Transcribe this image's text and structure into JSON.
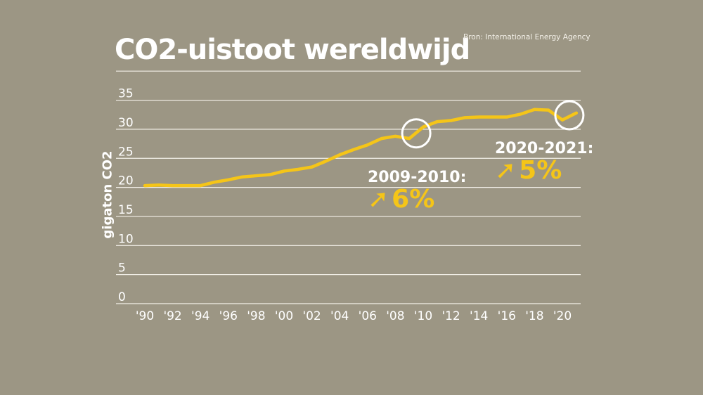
{
  "chart_data": {
    "type": "line",
    "title": "CO2-uistoot wereldwijd",
    "source": "Bron: International Energy Agency",
    "ylabel": "gigaton CO2",
    "xlabel": "",
    "ylim": [
      0,
      40
    ],
    "yticks": [
      0,
      5,
      10,
      15,
      20,
      25,
      30,
      35
    ],
    "ytick_labels": [
      "0",
      "5",
      "10",
      "15",
      "20",
      "25",
      "30",
      "35"
    ],
    "xlim": [
      1990,
      2021
    ],
    "xticks": [
      1990,
      1992,
      1994,
      1996,
      1998,
      2000,
      2002,
      2004,
      2006,
      2008,
      2010,
      2012,
      2014,
      2016,
      2018,
      2020
    ],
    "xtick_labels": [
      "'90",
      "'92",
      "'94",
      "'96",
      "'98",
      "'00",
      "'02",
      "'04",
      "'06",
      "'08",
      "'10",
      "'12",
      "'14",
      "'16",
      "'18",
      "'20"
    ],
    "grid": true,
    "series": [
      {
        "name": "CO2-uitstoot",
        "color": "#f5c518",
        "x": [
          1990,
          1991,
          1992,
          1993,
          1994,
          1995,
          1996,
          1997,
          1998,
          1999,
          2000,
          2001,
          2002,
          2003,
          2004,
          2005,
          2006,
          2007,
          2008,
          2009,
          2010,
          2011,
          2012,
          2013,
          2014,
          2015,
          2016,
          2017,
          2018,
          2019,
          2020,
          2021
        ],
        "values": [
          20.3,
          20.4,
          20.3,
          20.3,
          20.3,
          20.9,
          21.3,
          21.8,
          22.0,
          22.2,
          22.8,
          23.1,
          23.5,
          24.5,
          25.6,
          26.5,
          27.3,
          28.4,
          28.8,
          28.4,
          30.4,
          31.3,
          31.5,
          32.0,
          32.1,
          32.1,
          32.1,
          32.6,
          33.4,
          33.3,
          31.6,
          32.8
        ]
      }
    ],
    "annotations": [
      {
        "period": "2009-2010:",
        "change": "6%",
        "highlight_year": 2009.5,
        "highlight_value": 29.3
      },
      {
        "period": "2020-2021:",
        "change": "5%",
        "highlight_year": 2020.5,
        "highlight_value": 32.4
      }
    ]
  }
}
